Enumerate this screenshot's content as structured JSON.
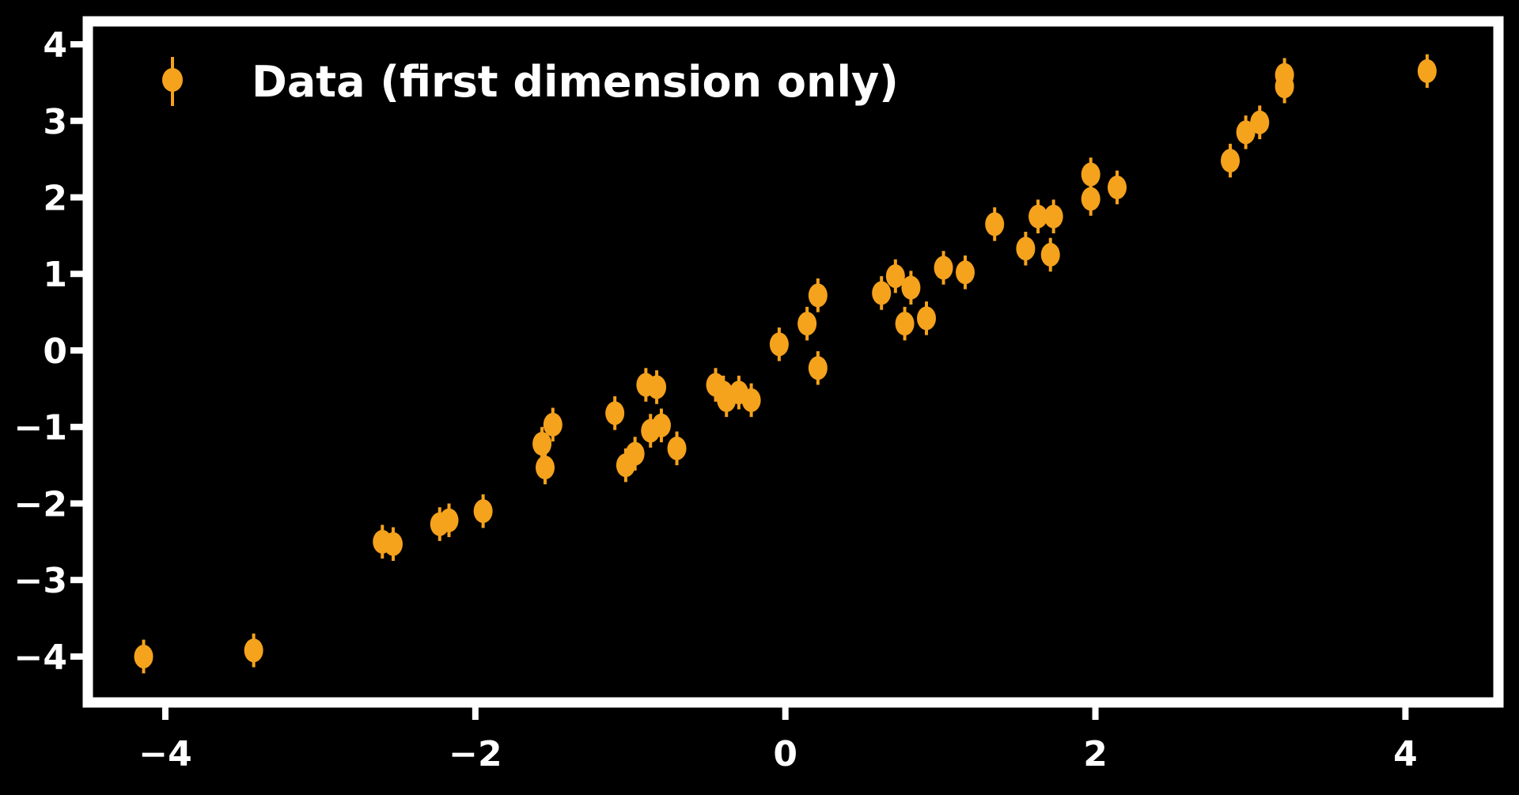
{
  "chart_data": {
    "type": "scatter",
    "title": "",
    "xlabel": "",
    "ylabel": "",
    "xlim": [
      -4.5,
      4.6
    ],
    "ylim": [
      -4.6,
      4.3
    ],
    "xticks": [
      -4,
      -2,
      0,
      2,
      4
    ],
    "yticks": [
      -4,
      -3,
      -2,
      -1,
      0,
      1,
      2,
      3,
      4
    ],
    "xtick_labels": [
      "−4",
      "−2",
      "0",
      "2",
      "4"
    ],
    "ytick_labels": [
      "−4",
      "−3",
      "−2",
      "−1",
      "0",
      "1",
      "2",
      "3",
      "4"
    ],
    "grid": false,
    "legend": {
      "location": "top-left",
      "entries": [
        "Data (first dimension only)"
      ]
    },
    "series": [
      {
        "name": "Data (first dimension only)",
        "marker": "errorbar",
        "x": [
          -4.14,
          -3.43,
          -2.6,
          -2.53,
          -2.23,
          -2.17,
          -1.95,
          -1.57,
          -1.55,
          -1.5,
          -1.1,
          -1.03,
          -0.97,
          -0.9,
          -0.87,
          -0.83,
          -0.8,
          -0.7,
          -0.45,
          -0.4,
          -0.38,
          -0.3,
          -0.22,
          -0.04,
          0.14,
          0.21,
          0.21,
          0.62,
          0.71,
          0.77,
          0.81,
          0.91,
          1.02,
          1.16,
          1.35,
          1.55,
          1.63,
          1.71,
          1.73,
          1.97,
          1.97,
          2.14,
          2.87,
          2.97,
          3.06,
          3.22,
          3.22,
          4.14
        ],
        "y": [
          -4.0,
          -3.92,
          -2.5,
          -2.53,
          -2.27,
          -2.22,
          -2.1,
          -1.22,
          -1.53,
          -0.97,
          -0.82,
          -1.5,
          -1.35,
          -0.45,
          -1.05,
          -0.48,
          -0.98,
          -1.28,
          -0.45,
          -0.55,
          -0.65,
          -0.55,
          -0.65,
          0.08,
          0.35,
          0.72,
          -0.23,
          0.75,
          0.97,
          0.35,
          0.82,
          0.42,
          1.08,
          1.02,
          1.65,
          1.33,
          1.75,
          1.25,
          1.75,
          2.3,
          1.98,
          2.13,
          2.48,
          2.85,
          2.98,
          3.45,
          3.6,
          3.65
        ],
        "yerr": 0.22
      }
    ],
    "colors": {
      "background": "#000000",
      "axes": "#ffffff",
      "marker": "#f5a21c",
      "text": "#ffffff"
    }
  }
}
